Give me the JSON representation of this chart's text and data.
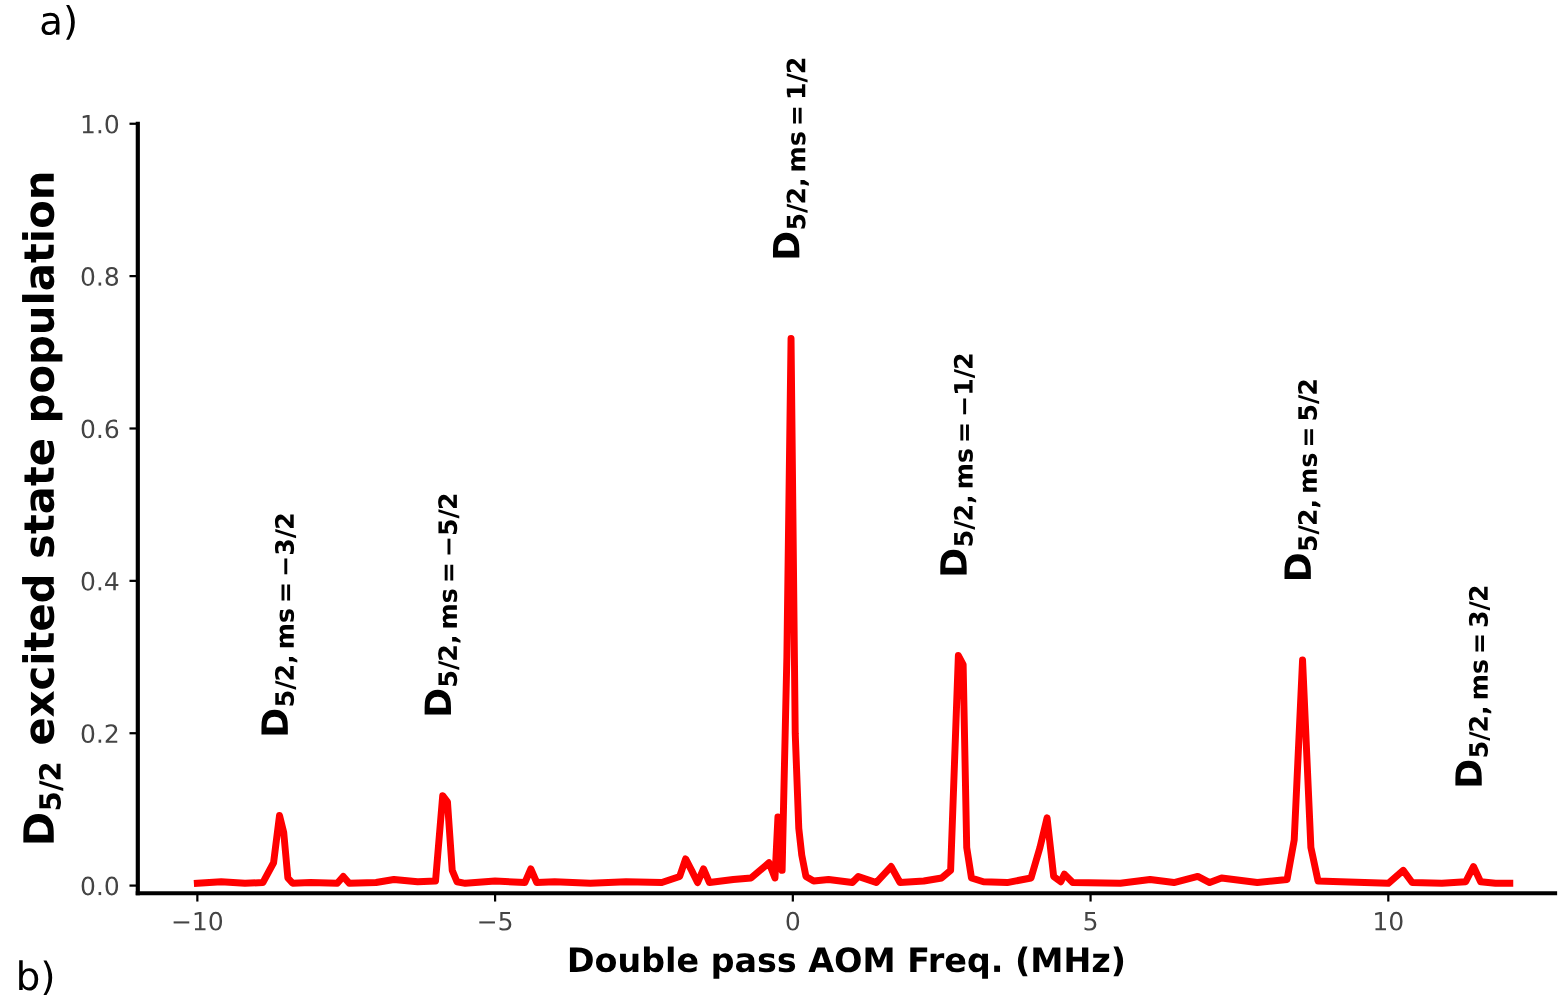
{
  "chart_data": {
    "type": "line",
    "xlabel": "Double pass AOM Freq. (MHz)",
    "ylabel": "D$_{5/2}$ excited state population",
    "series": [
      {
        "color": "#ff0000",
        "x": [
          -10,
          -9.6,
          -9.2,
          -8.9,
          -8.72,
          -8.62,
          -8.55,
          -8.48,
          -8.4,
          -8.1,
          -7.65,
          -7.55,
          -7.45,
          -7.0,
          -6.7,
          -6.3,
          -6.0,
          -5.88,
          -5.8,
          -5.72,
          -5.64,
          -5.5,
          -5.0,
          -4.5,
          -4.4,
          -4.3,
          -4.0,
          -3.4,
          -2.8,
          -2.2,
          -1.9,
          -1.8,
          -1.7,
          -1.6,
          -1.5,
          -1.4,
          -1.0,
          -0.7,
          -0.4,
          -0.3,
          -0.25,
          -0.18,
          -0.1,
          -0.03,
          0.04,
          0.1,
          0.15,
          0.22,
          0.35,
          0.6,
          1.0,
          1.1,
          1.4,
          1.65,
          1.8,
          2.2,
          2.5,
          2.65,
          2.78,
          2.86,
          2.92,
          3.0,
          3.2,
          3.6,
          4.0,
          4.15,
          4.27,
          4.38,
          4.5,
          4.56,
          4.7,
          5.5,
          6.0,
          6.4,
          6.8,
          7.0,
          7.2,
          7.8,
          8.3,
          8.42,
          8.56,
          8.7,
          8.82,
          9.2,
          9.6,
          10.0,
          10.25,
          10.4,
          10.9,
          11.3,
          11.43,
          11.55,
          11.8,
          12.04
        ],
        "values": [
          0.003,
          0.005,
          0.003,
          0.004,
          0.03,
          0.092,
          0.07,
          0.01,
          0.003,
          0.004,
          0.003,
          0.012,
          0.003,
          0.004,
          0.008,
          0.005,
          0.006,
          0.118,
          0.11,
          0.02,
          0.005,
          0.003,
          0.006,
          0.004,
          0.022,
          0.004,
          0.005,
          0.003,
          0.005,
          0.004,
          0.012,
          0.035,
          0.02,
          0.004,
          0.022,
          0.004,
          0.008,
          0.01,
          0.03,
          0.01,
          0.09,
          0.02,
          0.3,
          0.718,
          0.2,
          0.075,
          0.04,
          0.012,
          0.006,
          0.008,
          0.004,
          0.012,
          0.004,
          0.025,
          0.004,
          0.006,
          0.01,
          0.02,
          0.302,
          0.29,
          0.05,
          0.01,
          0.005,
          0.004,
          0.01,
          0.05,
          0.089,
          0.012,
          0.005,
          0.015,
          0.004,
          0.003,
          0.008,
          0.004,
          0.012,
          0.004,
          0.01,
          0.004,
          0.008,
          0.06,
          0.296,
          0.05,
          0.006,
          0.005,
          0.004,
          0.003,
          0.02,
          0.004,
          0.003,
          0.005,
          0.025,
          0.005,
          0.003,
          0.003
        ]
      }
    ],
    "xlim": [
      -11,
      12.8
    ],
    "ylim": [
      -0.01,
      1.0
    ],
    "xticks": [
      {
        "value": -10,
        "label": "−10"
      },
      {
        "value": -5,
        "label": "−5"
      },
      0,
      5,
      10
    ],
    "yticks": [
      {
        "value": 0,
        "label": "0.0"
      },
      {
        "value": 0.2,
        "label": "0.2"
      },
      {
        "value": 0.4,
        "label": "0.4"
      },
      {
        "value": 0.6,
        "label": "0.6"
      },
      {
        "value": 0.8,
        "label": "0.8"
      },
      {
        "value": 1.0,
        "label": "1.0"
      }
    ],
    "grid": false,
    "legend": false,
    "marker": "none",
    "line_style": "solid",
    "annotations": [
      "a)",
      "b)",
      {
        "text": "D$_{5/2,ms=−3/2}$",
        "x": -8.62,
        "y": 0.092
      },
      {
        "text": "D$_{5/2,ms=−5/2}$",
        "x": -5.88,
        "y": 0.118
      },
      {
        "text": "D$_{5/2,ms=1/2}$",
        "x": -0.03,
        "y": 0.718
      },
      {
        "text": "D$_{5/2,ms=−1/2}$",
        "x": 2.78,
        "y": 0.302
      },
      {
        "text": "D$_{5/2,ms=5/2}$",
        "x": 8.56,
        "y": 0.296
      },
      {
        "text": "D$_{5/2,ms=3/2}$",
        "x": 11.43,
        "y": 0.025
      }
    ]
  }
}
